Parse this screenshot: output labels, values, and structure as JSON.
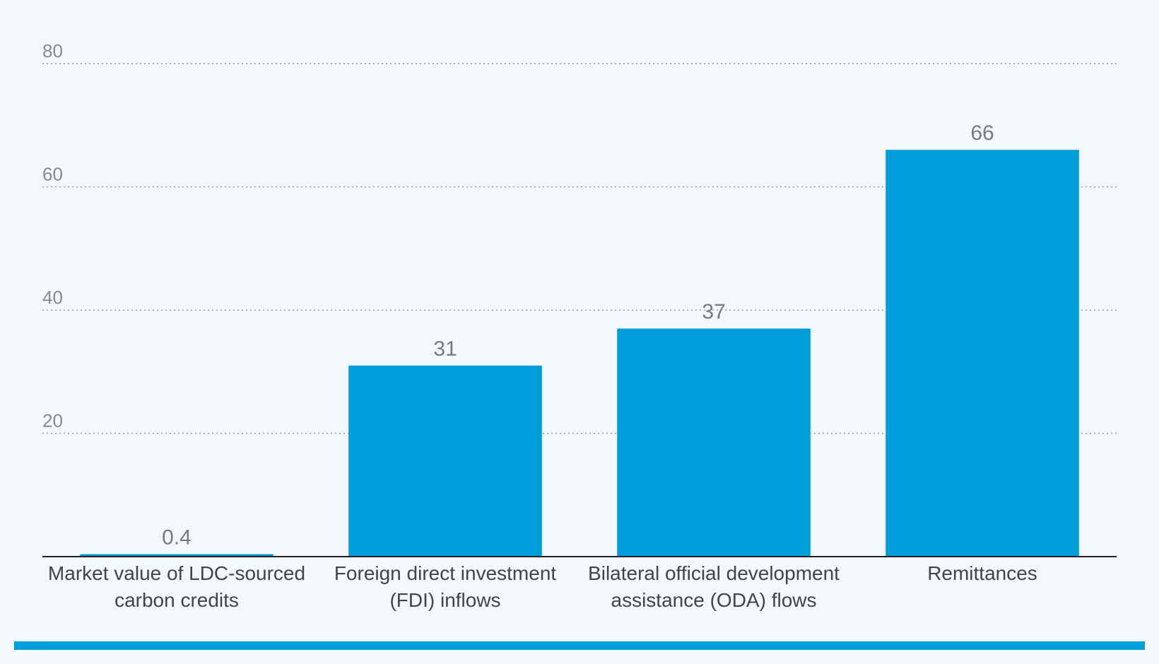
{
  "chart_data": {
    "type": "bar",
    "title": "",
    "xlabel": "",
    "ylabel": "",
    "ylim": [
      0,
      80
    ],
    "yticks": [
      20,
      40,
      60,
      80
    ],
    "grid": true,
    "categories": [
      [
        "Market value of LDC-sourced",
        "carbon credits"
      ],
      [
        "Foreign direct investment",
        "(FDI) inflows"
      ],
      [
        "Bilateral official development",
        "assistance (ODA) flows"
      ],
      [
        "Remittances"
      ]
    ],
    "values": [
      0.4,
      31,
      37,
      66
    ],
    "value_labels": [
      "0.4",
      "31",
      "37",
      "66"
    ],
    "colors": {
      "bar": "#009ddb",
      "bar_small": "#0b4f8a",
      "footer_rule": "#009ddb"
    }
  }
}
